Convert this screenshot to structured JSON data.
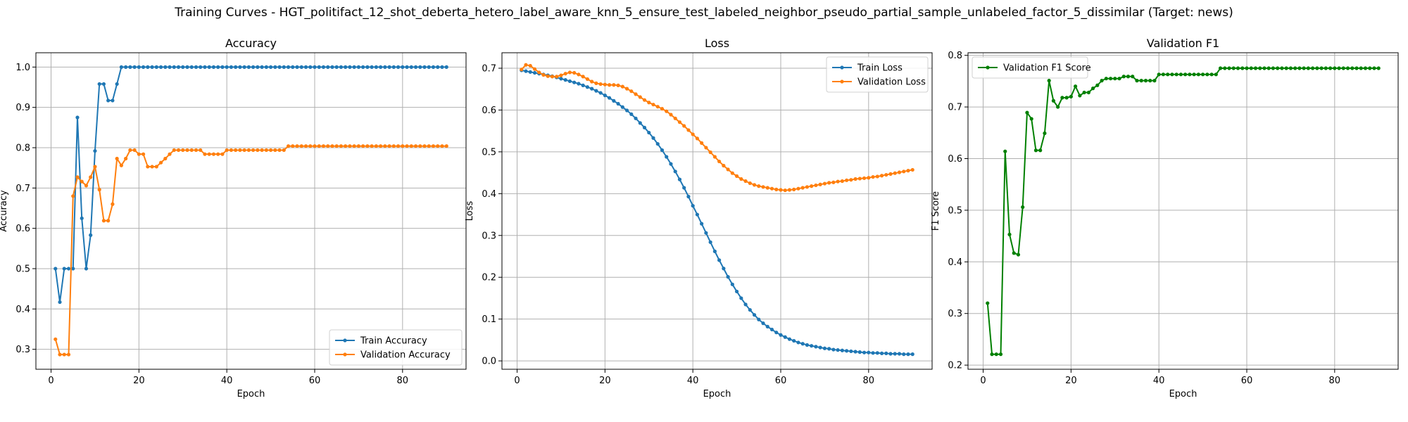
{
  "figure": {
    "title": "Training Curves - HGT_politifact_12_shot_deberta_hetero_label_aware_knn_5_ensure_test_labeled_neighbor_pseudo_partial_sample_unlabeled_factor_5_dissimilar (Target: news)"
  },
  "colors": {
    "blue": "#1f77b4",
    "orange": "#ff7f0e",
    "green": "#008000",
    "grid": "#b0b0b0"
  },
  "chart_data": [
    {
      "type": "line",
      "title": "Accuracy",
      "xlabel": "Epoch",
      "ylabel": "Accuracy",
      "xlim": [
        -3.45,
        94.45
      ],
      "ylim": [
        0.2505,
        1.0355
      ],
      "xticks": [
        0,
        20,
        40,
        60,
        80
      ],
      "yticks": [
        0.3,
        0.4,
        0.5,
        0.6,
        0.7,
        0.8,
        0.9,
        1.0
      ],
      "ytick_labels": [
        "0.3",
        "0.4",
        "0.5",
        "0.6",
        "0.7",
        "0.8",
        "0.9",
        "1.0"
      ],
      "grid": true,
      "legend": "lower-right",
      "series": [
        {
          "name": "Train Accuracy",
          "color": "#1f77b4",
          "x": [
            1,
            2,
            3,
            4,
            5,
            6,
            7,
            8,
            9,
            10,
            11,
            12,
            13,
            14,
            15,
            16,
            17,
            18,
            19,
            20,
            21,
            22,
            23,
            24,
            25,
            26,
            27,
            28,
            29,
            30,
            31,
            32,
            33,
            34,
            35,
            36,
            37,
            38,
            39,
            40,
            41,
            42,
            43,
            44,
            45,
            46,
            47,
            48,
            49,
            50,
            51,
            52,
            53,
            54,
            55,
            56,
            57,
            58,
            59,
            60,
            61,
            62,
            63,
            64,
            65,
            66,
            67,
            68,
            69,
            70,
            71,
            72,
            73,
            74,
            75,
            76,
            77,
            78,
            79,
            80,
            81,
            82,
            83,
            84,
            85,
            86,
            87,
            88,
            89,
            90
          ],
          "y": [
            0.5,
            0.417,
            0.5,
            0.5,
            0.5,
            0.875,
            0.625,
            0.5,
            0.583,
            0.792,
            0.958,
            0.958,
            0.917,
            0.917,
            0.958,
            1,
            1,
            1,
            1,
            1,
            1,
            1,
            1,
            1,
            1,
            1,
            1,
            1,
            1,
            1,
            1,
            1,
            1,
            1,
            1,
            1,
            1,
            1,
            1,
            1,
            1,
            1,
            1,
            1,
            1,
            1,
            1,
            1,
            1,
            1,
            1,
            1,
            1,
            1,
            1,
            1,
            1,
            1,
            1,
            1,
            1,
            1,
            1,
            1,
            1,
            1,
            1,
            1,
            1,
            1,
            1,
            1,
            1,
            1,
            1,
            1,
            1,
            1,
            1,
            1,
            1,
            1,
            1,
            1,
            1,
            1,
            1,
            1,
            1,
            1
          ]
        },
        {
          "name": "Validation Accuracy",
          "color": "#ff7f0e",
          "x": [
            1,
            2,
            3,
            4,
            5,
            6,
            7,
            8,
            9,
            10,
            11,
            12,
            13,
            14,
            15,
            16,
            17,
            18,
            19,
            20,
            21,
            22,
            23,
            24,
            25,
            26,
            27,
            28,
            29,
            30,
            31,
            32,
            33,
            34,
            35,
            36,
            37,
            38,
            39,
            40,
            41,
            42,
            43,
            44,
            45,
            46,
            47,
            48,
            49,
            50,
            51,
            52,
            53,
            54,
            55,
            56,
            57,
            58,
            59,
            60,
            61,
            62,
            63,
            64,
            65,
            66,
            67,
            68,
            69,
            70,
            71,
            72,
            73,
            74,
            75,
            76,
            77,
            78,
            79,
            80,
            81,
            82,
            83,
            84,
            85,
            86,
            87,
            88,
            89,
            90
          ],
          "y": [
            0.325,
            0.287,
            0.287,
            0.287,
            0.68,
            0.727,
            0.716,
            0.706,
            0.727,
            0.753,
            0.696,
            0.619,
            0.619,
            0.66,
            0.773,
            0.756,
            0.773,
            0.794,
            0.794,
            0.784,
            0.784,
            0.753,
            0.753,
            0.753,
            0.763,
            0.773,
            0.784,
            0.794,
            0.794,
            0.794,
            0.794,
            0.794,
            0.794,
            0.794,
            0.784,
            0.784,
            0.784,
            0.784,
            0.784,
            0.794,
            0.794,
            0.794,
            0.794,
            0.794,
            0.794,
            0.794,
            0.794,
            0.794,
            0.794,
            0.794,
            0.794,
            0.794,
            0.794,
            0.804,
            0.804,
            0.804,
            0.804,
            0.804,
            0.804,
            0.804,
            0.804,
            0.804,
            0.804,
            0.804,
            0.804,
            0.804,
            0.804,
            0.804,
            0.804,
            0.804,
            0.804,
            0.804,
            0.804,
            0.804,
            0.804,
            0.804,
            0.804,
            0.804,
            0.804,
            0.804,
            0.804,
            0.804,
            0.804,
            0.804,
            0.804,
            0.804,
            0.804,
            0.804,
            0.804,
            0.804
          ]
        }
      ]
    },
    {
      "type": "line",
      "title": "Loss",
      "xlabel": "Epoch",
      "ylabel": "Loss",
      "xlim": [
        -3.45,
        94.45
      ],
      "ylim": [
        -0.02,
        0.737
      ],
      "xticks": [
        0,
        20,
        40,
        60,
        80
      ],
      "yticks": [
        0.0,
        0.1,
        0.2,
        0.3,
        0.4,
        0.5,
        0.6,
        0.7
      ],
      "ytick_labels": [
        "0.0",
        "0.1",
        "0.2",
        "0.3",
        "0.4",
        "0.5",
        "0.6",
        "0.7"
      ],
      "grid": true,
      "legend": "upper-right",
      "series": [
        {
          "name": "Train Loss",
          "color": "#1f77b4",
          "x": [
            1,
            2,
            3,
            4,
            5,
            6,
            7,
            8,
            9,
            10,
            11,
            12,
            13,
            14,
            15,
            16,
            17,
            18,
            19,
            20,
            21,
            22,
            23,
            24,
            25,
            26,
            27,
            28,
            29,
            30,
            31,
            32,
            33,
            34,
            35,
            36,
            37,
            38,
            39,
            40,
            41,
            42,
            43,
            44,
            45,
            46,
            47,
            48,
            49,
            50,
            51,
            52,
            53,
            54,
            55,
            56,
            57,
            58,
            59,
            60,
            61,
            62,
            63,
            64,
            65,
            66,
            67,
            68,
            69,
            70,
            71,
            72,
            73,
            74,
            75,
            76,
            77,
            78,
            79,
            80,
            81,
            82,
            83,
            84,
            85,
            86,
            87,
            88,
            89,
            90
          ],
          "y": [
            0.695,
            0.693,
            0.691,
            0.689,
            0.687,
            0.685,
            0.683,
            0.681,
            0.678,
            0.675,
            0.672,
            0.669,
            0.666,
            0.663,
            0.659,
            0.655,
            0.651,
            0.646,
            0.641,
            0.635,
            0.629,
            0.622,
            0.615,
            0.607,
            0.599,
            0.59,
            0.58,
            0.569,
            0.558,
            0.546,
            0.533,
            0.519,
            0.504,
            0.488,
            0.471,
            0.453,
            0.434,
            0.414,
            0.393,
            0.371,
            0.35,
            0.328,
            0.306,
            0.284,
            0.262,
            0.241,
            0.221,
            0.201,
            0.183,
            0.166,
            0.15,
            0.135,
            0.122,
            0.11,
            0.099,
            0.09,
            0.082,
            0.075,
            0.068,
            0.062,
            0.057,
            0.052,
            0.048,
            0.044,
            0.041,
            0.038,
            0.036,
            0.034,
            0.032,
            0.03,
            0.029,
            0.027,
            0.026,
            0.025,
            0.024,
            0.023,
            0.022,
            0.021,
            0.02,
            0.02,
            0.019,
            0.019,
            0.018,
            0.018,
            0.017,
            0.017,
            0.017,
            0.016,
            0.016,
            0.016
          ]
        },
        {
          "name": "Validation Loss",
          "color": "#ff7f0e",
          "x": [
            1,
            2,
            3,
            4,
            5,
            6,
            7,
            8,
            9,
            10,
            11,
            12,
            13,
            14,
            15,
            16,
            17,
            18,
            19,
            20,
            21,
            22,
            23,
            24,
            25,
            26,
            27,
            28,
            29,
            30,
            31,
            32,
            33,
            34,
            35,
            36,
            37,
            38,
            39,
            40,
            41,
            42,
            43,
            44,
            45,
            46,
            47,
            48,
            49,
            50,
            51,
            52,
            53,
            54,
            55,
            56,
            57,
            58,
            59,
            60,
            61,
            62,
            63,
            64,
            65,
            66,
            67,
            68,
            69,
            70,
            71,
            72,
            73,
            74,
            75,
            76,
            77,
            78,
            79,
            80,
            81,
            82,
            83,
            84,
            85,
            86,
            87,
            88,
            89,
            90
          ],
          "y": [
            0.697,
            0.708,
            0.706,
            0.698,
            0.69,
            0.684,
            0.681,
            0.68,
            0.68,
            0.683,
            0.687,
            0.69,
            0.689,
            0.685,
            0.68,
            0.674,
            0.668,
            0.664,
            0.662,
            0.661,
            0.66,
            0.66,
            0.659,
            0.656,
            0.651,
            0.645,
            0.638,
            0.631,
            0.624,
            0.618,
            0.613,
            0.608,
            0.603,
            0.597,
            0.589,
            0.58,
            0.571,
            0.562,
            0.552,
            0.542,
            0.532,
            0.521,
            0.51,
            0.499,
            0.488,
            0.477,
            0.467,
            0.458,
            0.449,
            0.442,
            0.435,
            0.43,
            0.425,
            0.421,
            0.418,
            0.416,
            0.414,
            0.412,
            0.41,
            0.409,
            0.408,
            0.409,
            0.41,
            0.412,
            0.414,
            0.416,
            0.418,
            0.42,
            0.422,
            0.424,
            0.426,
            0.427,
            0.429,
            0.43,
            0.432,
            0.433,
            0.435,
            0.436,
            0.437,
            0.438,
            0.44,
            0.441,
            0.443,
            0.445,
            0.447,
            0.449,
            0.451,
            0.453,
            0.455,
            0.457
          ]
        }
      ]
    },
    {
      "type": "line",
      "title": "Validation F1",
      "xlabel": "Epoch",
      "ylabel": "F1 Score",
      "xlim": [
        -3.45,
        94.45
      ],
      "ylim": [
        0.192,
        0.805
      ],
      "xticks": [
        0,
        20,
        40,
        60,
        80
      ],
      "yticks": [
        0.2,
        0.3,
        0.4,
        0.5,
        0.6,
        0.7,
        0.8
      ],
      "ytick_labels": [
        "0.2",
        "0.3",
        "0.4",
        "0.5",
        "0.6",
        "0.7",
        "0.8"
      ],
      "grid": true,
      "legend": "upper-left",
      "series": [
        {
          "name": "Validation F1 Score",
          "color": "#008000",
          "x": [
            1,
            2,
            3,
            4,
            5,
            6,
            7,
            8,
            9,
            10,
            11,
            12,
            13,
            14,
            15,
            16,
            17,
            18,
            19,
            20,
            21,
            22,
            23,
            24,
            25,
            26,
            27,
            28,
            29,
            30,
            31,
            32,
            33,
            34,
            35,
            36,
            37,
            38,
            39,
            40,
            41,
            42,
            43,
            44,
            45,
            46,
            47,
            48,
            49,
            50,
            51,
            52,
            53,
            54,
            55,
            56,
            57,
            58,
            59,
            60,
            61,
            62,
            63,
            64,
            65,
            66,
            67,
            68,
            69,
            70,
            71,
            72,
            73,
            74,
            75,
            76,
            77,
            78,
            79,
            80,
            81,
            82,
            83,
            84,
            85,
            86,
            87,
            88,
            89,
            90
          ],
          "y": [
            0.32,
            0.221,
            0.221,
            0.221,
            0.614,
            0.453,
            0.417,
            0.414,
            0.506,
            0.689,
            0.677,
            0.616,
            0.616,
            0.649,
            0.751,
            0.712,
            0.7,
            0.718,
            0.718,
            0.72,
            0.74,
            0.722,
            0.728,
            0.728,
            0.736,
            0.742,
            0.751,
            0.755,
            0.755,
            0.755,
            0.755,
            0.759,
            0.759,
            0.759,
            0.751,
            0.751,
            0.751,
            0.751,
            0.751,
            0.763,
            0.763,
            0.763,
            0.763,
            0.763,
            0.763,
            0.763,
            0.763,
            0.763,
            0.763,
            0.763,
            0.763,
            0.763,
            0.763,
            0.775,
            0.775,
            0.775,
            0.775,
            0.775,
            0.775,
            0.775,
            0.775,
            0.775,
            0.775,
            0.775,
            0.775,
            0.775,
            0.775,
            0.775,
            0.775,
            0.775,
            0.775,
            0.775,
            0.775,
            0.775,
            0.775,
            0.775,
            0.775,
            0.775,
            0.775,
            0.775,
            0.775,
            0.775,
            0.775,
            0.775,
            0.775,
            0.775,
            0.775,
            0.775,
            0.775,
            0.775
          ]
        }
      ]
    }
  ]
}
